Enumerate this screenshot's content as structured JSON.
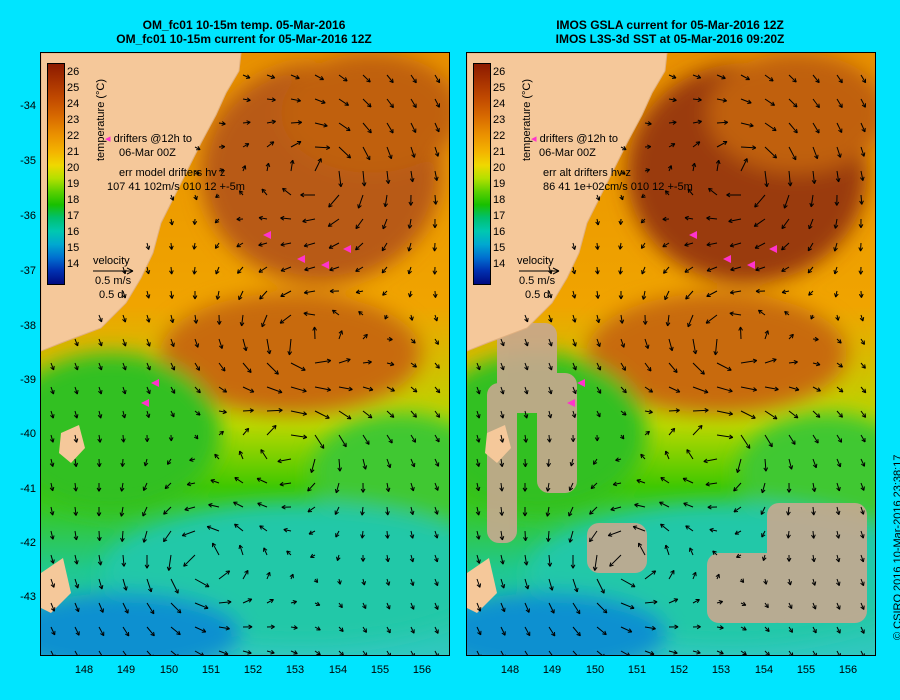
{
  "left_panel": {
    "title_line1": "OM_fc01 10-15m temp. 05-Mar-2016",
    "title_line2": "OM_fc01 10-15m current for 05-Mar-2016 12Z",
    "drifters_label": "drifters @12h to",
    "drifters_time": "06-Mar 00Z",
    "err_label": "err model drifters hv z",
    "err_values": "107 41 102m/s 010 12 +-5m",
    "velocity_label": "velocity",
    "velocity_speed": "0.5 m/s",
    "velocity_duration": "0.5 d"
  },
  "right_panel": {
    "title_line1": "IMOS GSLA current for 05-Mar-2016 12Z",
    "title_line2": "IMOS L3S-3d SST at 05-Mar-2016 09:20Z",
    "drifters_label": "drifters @12h to",
    "drifters_time": "06-Mar 00Z",
    "err_label": "err alt drifters hv z",
    "err_values": "86 41 1e+02cm/s 010 12 +-5m",
    "velocity_label": "velocity",
    "velocity_speed": "0.5 m/s",
    "velocity_duration": "0.5 d"
  },
  "colorbar": {
    "label": "temperature (°C)",
    "ticks": [
      "26",
      "25",
      "24",
      "23",
      "22",
      "21",
      "20",
      "19",
      "18",
      "17",
      "16",
      "15",
      "14"
    ]
  },
  "latitude_labels": [
    "-34",
    "-35",
    "-36",
    "-37",
    "-38",
    "-39",
    "-40",
    "-41",
    "-42",
    "-43"
  ],
  "longitude_labels": [
    "148",
    "149",
    "150",
    "151",
    "152",
    "153",
    "154",
    "155",
    "156"
  ],
  "credit": "© CSIRO 2016   10-Mar-2016 23:38:17",
  "colors": {
    "background": "#00e5ff",
    "land": "#f5c89a",
    "warm_core": "#a84a10",
    "drifter": "#ff33cc",
    "missing_data": "#c8a890"
  }
}
